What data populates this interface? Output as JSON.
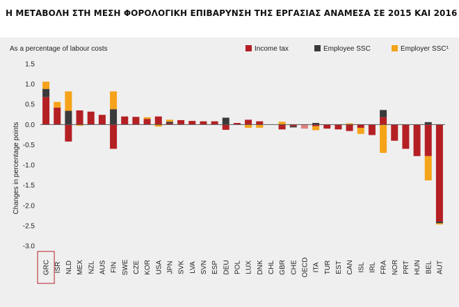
{
  "title": "Η ΜΕΤΑΒΟΛΗ ΣΤΗ ΜΕΣΗ ΦΟΡΟΛΟΓΙΚΗ ΕΠΙΒΑΡΥΝΣΗ ΤΗΣ ΕΡΓΑΣΙΑΣ ΑΝΑΜΕΣΑ ΣΕ 2015 ΚΑΙ 2016",
  "chart_data": {
    "type": "bar",
    "stacked": true,
    "subtitle": "As a percentage of labour costs",
    "ylabel": "Changes in percentage points",
    "xlabel": "",
    "ylim": [
      -3.0,
      1.5
    ],
    "yticks": [
      "1.5",
      "1.0",
      "0.5",
      "0.0",
      "-0.5",
      "-1.0",
      "-1.5",
      "-2.0",
      "-2.5",
      "-3.0"
    ],
    "grid": false,
    "legend_position": "top-right",
    "highlighted_category": "GRC",
    "categories": [
      "GRC",
      "ISR",
      "NLD",
      "MEX",
      "NZL",
      "AUS",
      "FIN",
      "SWE",
      "CZE",
      "KOR",
      "USA",
      "JPN",
      "SVK",
      "LVA",
      "SVN",
      "ESP",
      "DEU",
      "POL",
      "LUX",
      "DNK",
      "CHL",
      "GBR",
      "CHE",
      "OECD",
      "ITA",
      "TUR",
      "EST",
      "CAN",
      "ISL",
      "IRL",
      "FRA",
      "NOR",
      "PRT",
      "HUN",
      "BEL",
      "AUT"
    ],
    "series": [
      {
        "name": "Income tax",
        "color": "#b41f24",
        "values": [
          0.68,
          0.42,
          -0.42,
          0.35,
          0.32,
          0.24,
          -0.6,
          0.2,
          0.19,
          0.14,
          0.2,
          0.03,
          0.11,
          0.09,
          0.08,
          0.08,
          -0.13,
          0.04,
          0.12,
          0.08,
          0.0,
          -0.12,
          -0.04,
          -0.1,
          -0.04,
          -0.1,
          -0.12,
          -0.16,
          -0.08,
          -0.26,
          0.18,
          -0.4,
          -0.6,
          -0.78,
          -0.78,
          -2.4
        ]
      },
      {
        "name": "Employee SSC",
        "color": "#3a3a3a",
        "values": [
          0.2,
          0.0,
          0.34,
          0.0,
          0.0,
          0.0,
          0.38,
          0.0,
          0.0,
          0.0,
          0.0,
          0.04,
          0.0,
          0.0,
          0.0,
          0.0,
          0.17,
          0.0,
          0.0,
          0.0,
          0.0,
          0.0,
          -0.03,
          0.0,
          0.04,
          0.0,
          0.0,
          0.0,
          0.0,
          0.0,
          0.18,
          0.0,
          0.0,
          0.0,
          0.06,
          -0.04
        ]
      },
      {
        "name": "Employer SSC¹",
        "color": "#f5a31a",
        "values": [
          0.18,
          0.14,
          0.48,
          -0.03,
          0.0,
          0.0,
          0.44,
          0.0,
          0.0,
          0.04,
          -0.05,
          0.05,
          0.0,
          0.0,
          0.0,
          0.0,
          0.0,
          0.0,
          -0.08,
          -0.08,
          0.0,
          0.07,
          0.0,
          0.0,
          -0.1,
          0.0,
          0.0,
          0.03,
          -0.15,
          0.0,
          -0.7,
          0.0,
          0.0,
          0.0,
          -0.6,
          -0.03
        ]
      }
    ],
    "oecd_color": "#e08080"
  }
}
